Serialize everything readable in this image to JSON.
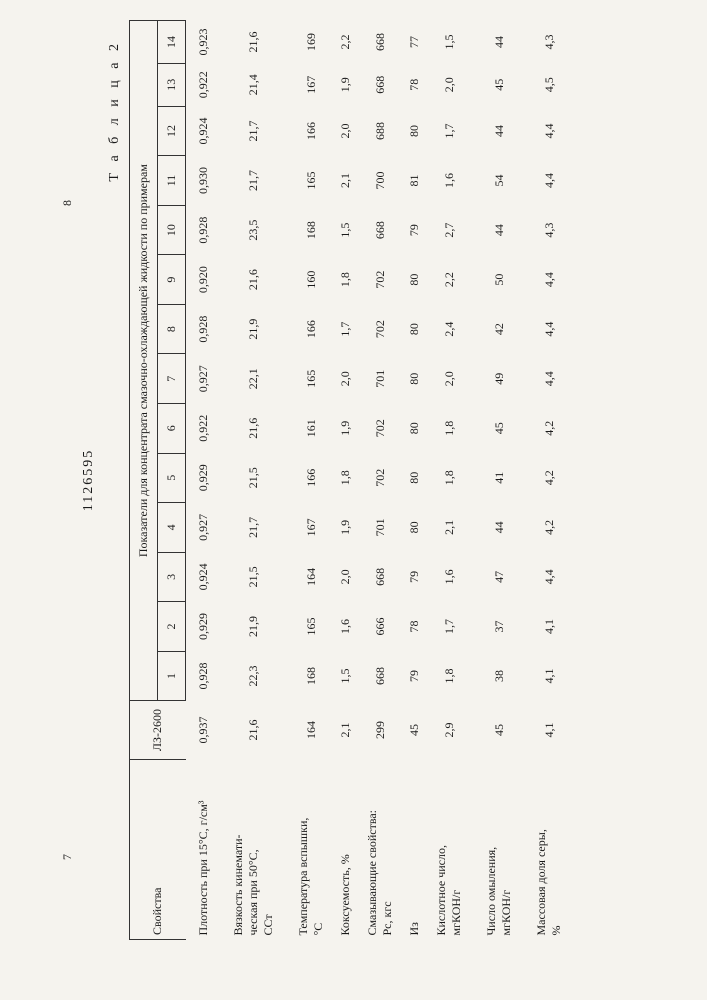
{
  "page_left": "7",
  "page_right": "8",
  "doc_number": "1126595",
  "table_label": "Т а б л и ц а  2",
  "header": {
    "prop_label": "Свойства",
    "lz_label": "ЛЗ-2600",
    "super_label": "Показатели для концентрата смазочно-охлаждающей жидкости по примерам",
    "example_numbers": [
      "1",
      "2",
      "3",
      "4",
      "5",
      "6",
      "7",
      "8",
      "9",
      "10",
      "11",
      "12",
      "13",
      "14"
    ]
  },
  "rows": [
    {
      "label": "Плотность при 15°С, г/см³",
      "lz": "0,937",
      "v": [
        "0,928",
        "0,929",
        "0,924",
        "0,927",
        "0,929",
        "0,922",
        "0,927",
        "0,928",
        "0,920",
        "0,928",
        "0,930",
        "0,924",
        "0,922",
        "0,923"
      ]
    },
    {
      "label": "Вязкость кинемати-\nческая при 50°С,\nССт",
      "lz": "21,6",
      "v": [
        "22,3",
        "21,9",
        "21,5",
        "21,7",
        "21,5",
        "21,6",
        "22,1",
        "21,9",
        "21,6",
        "23,5",
        "21,7",
        "21,7",
        "21,4",
        "21,6"
      ]
    },
    {
      "label": "Температура вспышки,\n°С",
      "lz": "164",
      "v": [
        "168",
        "165",
        "164",
        "167",
        "166",
        "161",
        "165",
        "166",
        "160",
        "168",
        "165",
        "166",
        "167",
        "169"
      ]
    },
    {
      "label": "Коксуемость, %",
      "lz": "2,1",
      "tight": true,
      "v": [
        "1,5",
        "1,6",
        "2,0",
        "1,9",
        "1,8",
        "1,9",
        "2,0",
        "1,7",
        "1,8",
        "1,5",
        "2,1",
        "2,0",
        "1,9",
        "2,2"
      ]
    },
    {
      "label": "Смазывающие свойства:\nPc, кгс",
      "lz": "299",
      "v": [
        "668",
        "666",
        "668",
        "701",
        "702",
        "702",
        "701",
        "702",
        "702",
        "668",
        "700",
        "688",
        "668",
        "668"
      ]
    },
    {
      "label": "Из",
      "lz": "45",
      "tight": true,
      "v": [
        "79",
        "78",
        "79",
        "80",
        "80",
        "80",
        "80",
        "80",
        "80",
        "79",
        "81",
        "80",
        "78",
        "77"
      ]
    },
    {
      "label": "Кислотное число,\nмгКОН/г",
      "lz": "2,9",
      "v": [
        "1,8",
        "1,7",
        "1,6",
        "2,1",
        "1,8",
        "1,8",
        "2,0",
        "2,4",
        "2,2",
        "2,7",
        "1,6",
        "1,7",
        "2,0",
        "1,5"
      ]
    },
    {
      "label": "Число омыления,\nмгКОН/г",
      "lz": "45",
      "v": [
        "38",
        "37",
        "47",
        "44",
        "41",
        "45",
        "49",
        "42",
        "50",
        "44",
        "54",
        "44",
        "45",
        "44"
      ]
    },
    {
      "label": "Массовая доля серы,\n%",
      "lz": "4,1",
      "v": [
        "4,1",
        "4,1",
        "4,4",
        "4,2",
        "4,2",
        "4,2",
        "4,4",
        "4,4",
        "4,4",
        "4,3",
        "4,4",
        "4,4",
        "4,5",
        "4,3"
      ]
    }
  ]
}
